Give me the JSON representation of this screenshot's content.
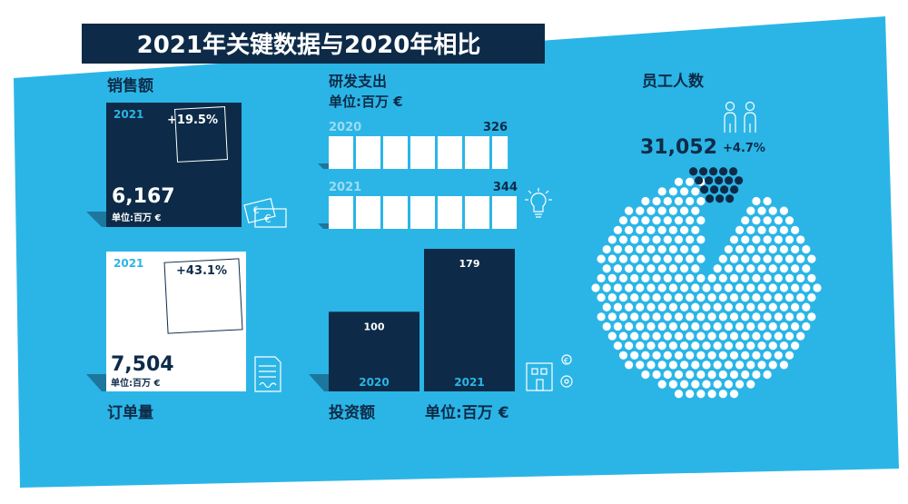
{
  "title": "2021年关键数据与2020年相比",
  "colors": {
    "background_blue": "#2BB5E6",
    "navy": "#0D2B48",
    "white": "#FFFFFF",
    "page": "#FFFFFF"
  },
  "sales": {
    "label": "销售额",
    "year": "2021",
    "change": "+19.5%",
    "value": "6,167",
    "unit": "单位:百万 €",
    "icon": "banknotes-euro-icon"
  },
  "orders": {
    "label": "订单量",
    "year": "2021",
    "change": "+43.1%",
    "value": "7,504",
    "unit": "单位:百万 €"
  },
  "rnd": {
    "label": "研发支出",
    "unit": "单位:百万 €",
    "icon": "lightbulb-icon"
  },
  "investment": {
    "label": "投资额",
    "unit": "单位:百万 €",
    "icon": "factory-gear-icon"
  },
  "employees": {
    "label": "员工人数",
    "value": "31,052",
    "change": "+4.7%",
    "icon": "people-icon"
  },
  "chart_data": [
    {
      "type": "bar",
      "orientation": "horizontal",
      "title": "研发支出",
      "unit": "单位:百万 €",
      "categories": [
        "2020",
        "2021"
      ],
      "values": [
        326,
        344
      ],
      "value_labels": [
        "326",
        "344"
      ]
    },
    {
      "type": "bar",
      "title": "投资额",
      "unit": "单位:百万 €",
      "categories": [
        "2020",
        "2021"
      ],
      "values": [
        100,
        179
      ],
      "value_labels": [
        "100",
        "179"
      ]
    },
    {
      "type": "pie",
      "title": "员工人数",
      "total": "31,052",
      "growth": "+4.7%",
      "slices": [
        {
          "name": "2020",
          "fraction": 0.953
        },
        {
          "name": "growth",
          "fraction": 0.047
        }
      ]
    }
  ]
}
